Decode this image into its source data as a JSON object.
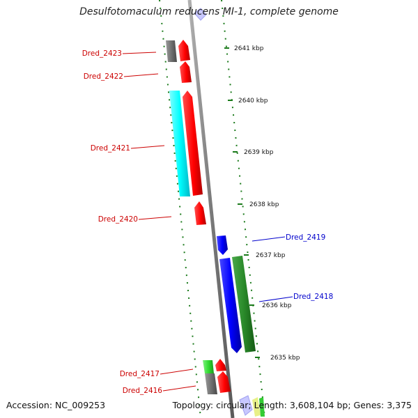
{
  "title": "Desulfotomaculum reducens MI-1, complete genome",
  "footer": {
    "accession": "Accession: NC_009253",
    "topology": "Topology: circular; Length: 3,608,104 bp; Genes: 3,375"
  },
  "colors": {
    "backbone": "#8c8c8c",
    "tick": "#1a7a1a",
    "label_red": "#cc0000",
    "label_blue": "#0000cc"
  },
  "kbp_ticks": [
    "2641 kbp",
    "2640 kbp",
    "2639 kbp",
    "2638 kbp",
    "2637 kbp",
    "2636 kbp",
    "2635 kbp"
  ],
  "gene_labels": [
    "Dred_2423",
    "Dred_2422",
    "Dred_2421",
    "Dred_2420",
    "Dred_2419",
    "Dred_2418",
    "Dred_2417",
    "Dred_2416"
  ]
}
